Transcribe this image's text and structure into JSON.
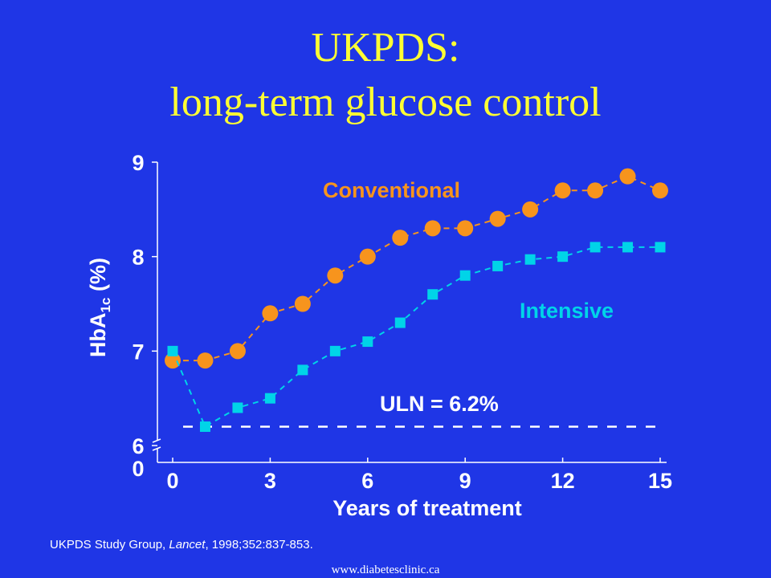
{
  "slide": {
    "title_line1": "UKPDS:",
    "title_line2": "long-term glucose control",
    "citation_prefix": "UKPDS Study Group, ",
    "citation_journal": "Lancet",
    "citation_suffix": ", 1998;352:837-853.",
    "footer_url": "www.diabetesclinic.ca"
  },
  "colors": {
    "background": "#1f36e6",
    "title": "#ffff33",
    "conventional": "#f7941d",
    "intensive": "#00d4e8",
    "axis": "#ffffff"
  },
  "chart_data": {
    "type": "line",
    "xlabel": "Years of treatment",
    "ylabel": "HbA1c (%)",
    "ylabel_main": "HbA",
    "ylabel_sub": "1c",
    "ylabel_unit": " (%)",
    "xlim": [
      0,
      15
    ],
    "ylim": [
      6,
      9
    ],
    "y_axis_break": true,
    "x_ticks": [
      0,
      3,
      6,
      9,
      12,
      15
    ],
    "y_ticks": [
      6,
      7,
      8,
      9
    ],
    "y_break_label": "0",
    "grid": false,
    "series": [
      {
        "name": "Conventional",
        "marker": "circle",
        "x": [
          0,
          1,
          2,
          3,
          4,
          5,
          6,
          7,
          8,
          9,
          10,
          11,
          12,
          13,
          14,
          15
        ],
        "values": [
          6.9,
          6.9,
          7.0,
          7.4,
          7.5,
          7.8,
          8.0,
          8.2,
          8.3,
          8.3,
          8.4,
          8.5,
          8.7,
          8.7,
          8.85,
          8.7
        ]
      },
      {
        "name": "Intensive",
        "marker": "square",
        "x": [
          0,
          1,
          2,
          3,
          4,
          5,
          6,
          7,
          8,
          9,
          10,
          11,
          12,
          13,
          14,
          15
        ],
        "values": [
          7.0,
          6.2,
          6.4,
          6.5,
          6.8,
          7.0,
          7.1,
          7.3,
          7.6,
          7.8,
          7.9,
          7.97,
          8.0,
          8.1,
          8.1,
          8.1
        ]
      }
    ],
    "reference_line": {
      "label": "ULN = 6.2%",
      "y": 6.2
    }
  }
}
